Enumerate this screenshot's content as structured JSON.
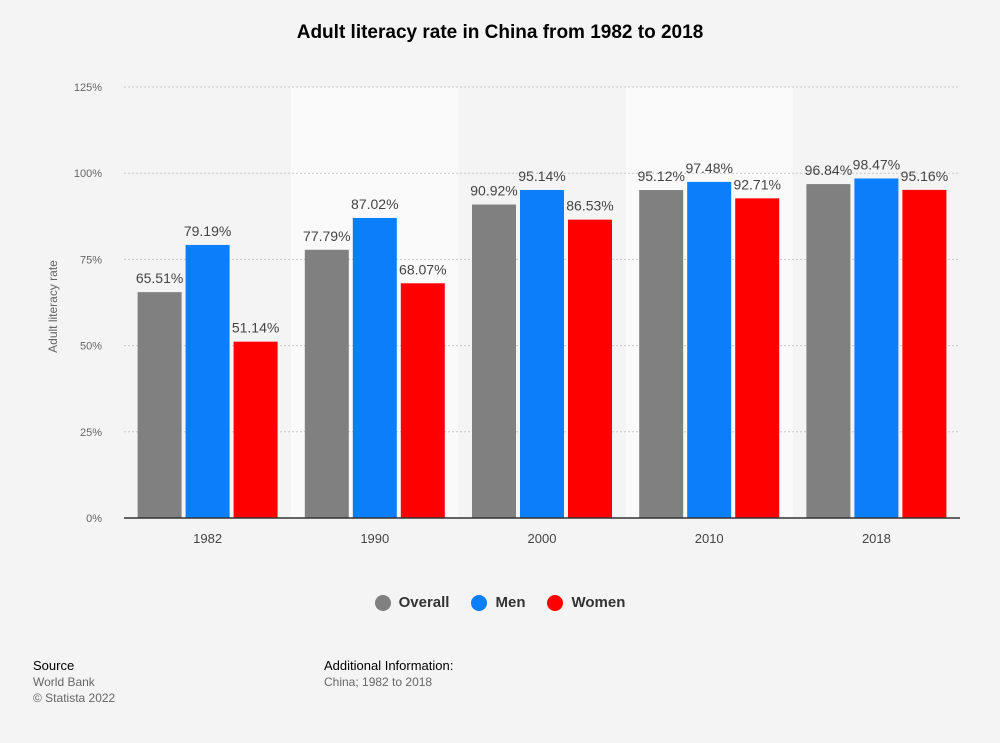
{
  "chart_data": {
    "type": "bar",
    "title": "Adult literacy rate in China from 1982 to 2018",
    "xlabel": "",
    "ylabel": "Adult literacy rate",
    "categories": [
      "1982",
      "1990",
      "2000",
      "2010",
      "2018"
    ],
    "series": [
      {
        "name": "Overall",
        "color": "#808080",
        "values": [
          65.51,
          77.79,
          90.92,
          95.12,
          96.84
        ]
      },
      {
        "name": "Men",
        "color": "#0b7ef9",
        "values": [
          79.19,
          87.02,
          95.14,
          97.48,
          98.47
        ]
      },
      {
        "name": "Women",
        "color": "#ff0000",
        "values": [
          51.14,
          68.07,
          86.53,
          92.71,
          95.16
        ]
      }
    ],
    "ylim": [
      0,
      125
    ],
    "yticks": [
      0,
      25,
      50,
      75,
      100,
      125
    ],
    "ytick_labels": [
      "0%",
      "25%",
      "50%",
      "75%",
      "100%",
      "125%"
    ],
    "value_suffix": "%",
    "grid": true,
    "legend_position": "bottom-center"
  },
  "footer": {
    "source_heading": "Source",
    "source_lines": [
      "World Bank",
      "© Statista 2022"
    ],
    "info_heading": "Additional Information:",
    "info_text": "China; 1982 to 2018"
  }
}
